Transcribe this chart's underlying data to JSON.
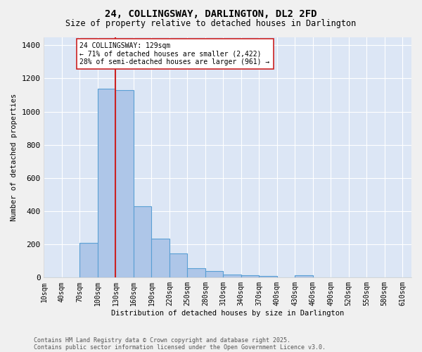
{
  "title": "24, COLLINGSWAY, DARLINGTON, DL2 2FD",
  "subtitle": "Size of property relative to detached houses in Darlington",
  "xlabel": "Distribution of detached houses by size in Darlington",
  "ylabel": "Number of detached properties",
  "bar_color": "#aec6e8",
  "bar_edge_color": "#5a9fd4",
  "background_color": "#dce6f5",
  "grid_color": "#ffffff",
  "fig_background": "#f0f0f0",
  "annotation_line_color": "#cc2222",
  "bin_starts": [
    10,
    40,
    70,
    100,
    130,
    160,
    190,
    220,
    250,
    280,
    310,
    340,
    370,
    400,
    430,
    460,
    490,
    520,
    550,
    580,
    610
  ],
  "bin_width": 30,
  "counts": [
    0,
    0,
    210,
    1140,
    1130,
    430,
    235,
    145,
    55,
    38,
    20,
    15,
    12,
    0,
    15,
    0,
    0,
    0,
    0,
    0,
    0
  ],
  "property_size": 129,
  "annotation_line1": "24 COLLINGSWAY: 129sqm",
  "annotation_line2": "← 71% of detached houses are smaller (2,422)",
  "annotation_line3": "28% of semi-detached houses are larger (961) →",
  "footnote1": "Contains HM Land Registry data © Crown copyright and database right 2025.",
  "footnote2": "Contains public sector information licensed under the Open Government Licence v3.0.",
  "ylim": [
    0,
    1450
  ],
  "xlim": [
    10,
    625
  ],
  "yticks": [
    0,
    200,
    400,
    600,
    800,
    1000,
    1200,
    1400
  ],
  "title_fontsize": 10,
  "subtitle_fontsize": 8.5,
  "axis_fontsize": 7.5,
  "tick_fontsize": 7,
  "footnote_fontsize": 6
}
